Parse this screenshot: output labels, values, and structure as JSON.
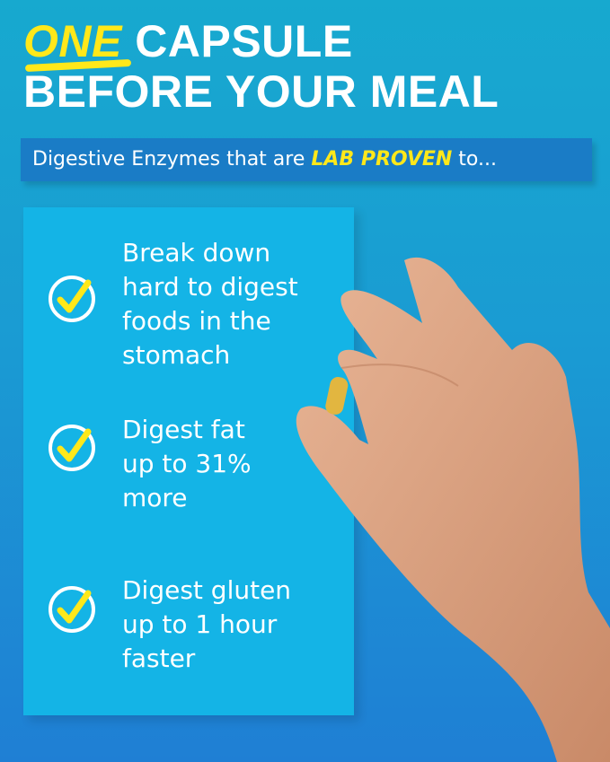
{
  "headline": {
    "emphasis": "ONE",
    "line1_rest": " CAPSULE",
    "line2": "BEFORE YOUR MEAL"
  },
  "banner": {
    "before": "Digestive Enzymes that are ",
    "highlight": "LAB PROVEN",
    "after": " to..."
  },
  "benefits": [
    {
      "icon": "check-circle-icon",
      "text": "Break down\nhard to digest\nfoods in the\nstomach"
    },
    {
      "icon": "check-circle-icon",
      "text": "Digest fat\nup to 31%\nmore"
    },
    {
      "icon": "check-circle-icon",
      "text": "Digest gluten\nup to 1 hour\nfaster"
    }
  ],
  "colors": {
    "accent_yellow": "#ffe81a",
    "panel": "#14b4e6",
    "banner": "#1a7cc6",
    "background_top": "#17a9cf",
    "background_bottom": "#1f7fd4"
  }
}
